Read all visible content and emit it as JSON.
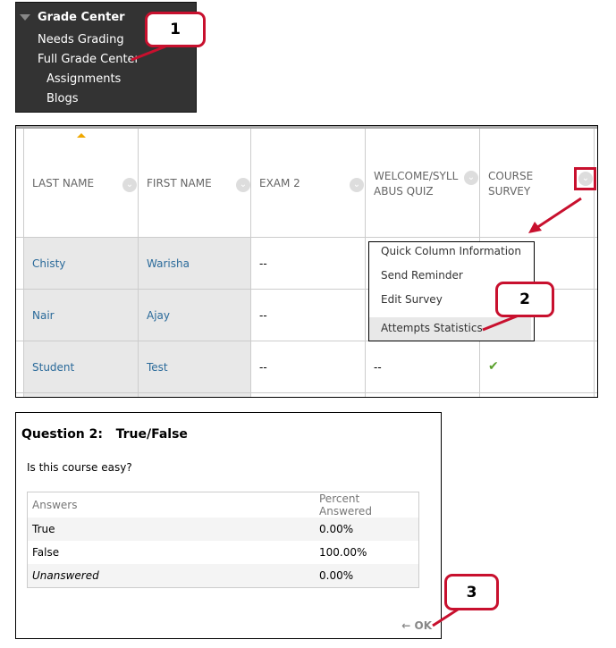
{
  "nav": {
    "title": "Grade Center",
    "items": [
      "Needs Grading",
      "Full Grade Center",
      "Assignments",
      "Blogs"
    ]
  },
  "callouts": [
    "1",
    "2",
    "3"
  ],
  "grid": {
    "headers": [
      "LAST NAME",
      "FIRST NAME",
      "EXAM 2",
      "WELCOME/SYLL ABUS QUIZ",
      "COURSE SURVEY"
    ],
    "rows": [
      [
        "Chisty",
        "Warisha",
        "--",
        "",
        ""
      ],
      [
        "Nair",
        "Ajay",
        "--",
        "",
        ""
      ],
      [
        "Student",
        "Test",
        "--",
        "--",
        "✔"
      ]
    ]
  },
  "menu": {
    "items": [
      "Quick Column Information",
      "Send Reminder",
      "Edit Survey",
      "Attempts Statistics"
    ]
  },
  "stats": {
    "title": "Question 2:   True/False",
    "question": "Is this course easy?",
    "col_answers": "Answers",
    "col_percent": "Percent Answered",
    "rows": [
      {
        "answer": "True",
        "percent": "0.00%"
      },
      {
        "answer": "False",
        "percent": "100.00%"
      },
      {
        "answer": "Unanswered",
        "percent": "0.00%"
      }
    ],
    "ok": "← OK"
  },
  "colors": {
    "accent": "#c8102e",
    "link": "#2a6a9a",
    "check": "#5aa02c"
  }
}
